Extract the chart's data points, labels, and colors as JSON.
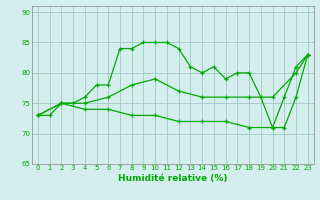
{
  "title": "",
  "xlabel": "Humidité relative (%)",
  "ylabel": "",
  "bg_color": "#d4eeee",
  "grid_color": "#a0c8c8",
  "line_color": "#00aa00",
  "ylim": [
    65,
    91
  ],
  "xlim": [
    -0.5,
    23.5
  ],
  "yticks": [
    65,
    70,
    75,
    80,
    85,
    90
  ],
  "xticks": [
    0,
    1,
    2,
    3,
    4,
    5,
    6,
    7,
    8,
    9,
    10,
    11,
    12,
    13,
    14,
    15,
    16,
    17,
    18,
    19,
    20,
    21,
    22,
    23
  ],
  "series": [
    {
      "x": [
        0,
        1,
        2,
        3,
        4,
        5,
        6,
        7,
        8,
        9,
        10,
        11,
        12,
        13,
        14,
        15,
        16,
        17,
        18,
        19,
        20,
        21,
        22,
        23
      ],
      "y": [
        73,
        73,
        75,
        75,
        76,
        78,
        78,
        84,
        84,
        85,
        85,
        85,
        84,
        81,
        80,
        81,
        79,
        80,
        80,
        76,
        71,
        76,
        81,
        83
      ]
    },
    {
      "x": [
        0,
        2,
        23
      ],
      "y": [
        73,
        75,
        83
      ]
    },
    {
      "x": [
        0,
        2,
        23
      ],
      "y": [
        73,
        75,
        83
      ]
    }
  ],
  "line1": {
    "x": [
      0,
      1,
      2,
      3,
      4,
      5,
      6,
      7,
      8,
      9,
      10,
      11,
      12,
      13,
      14,
      15,
      16,
      17,
      18,
      19,
      20,
      21,
      22,
      23
    ],
    "y": [
      73,
      73,
      75,
      75,
      76,
      78,
      78,
      84,
      84,
      85,
      85,
      85,
      84,
      81,
      80,
      81,
      79,
      80,
      80,
      76,
      71,
      76,
      81,
      83
    ]
  },
  "line2": {
    "x": [
      0,
      2,
      4,
      6,
      8,
      10,
      12,
      14,
      16,
      18,
      20,
      22,
      23
    ],
    "y": [
      73,
      75,
      75,
      76,
      78,
      79,
      77,
      76,
      76,
      76,
      76,
      80,
      83
    ]
  },
  "line3": {
    "x": [
      0,
      2,
      4,
      6,
      8,
      10,
      12,
      14,
      16,
      18,
      20,
      21,
      22,
      23
    ],
    "y": [
      73,
      75,
      74,
      74,
      73,
      73,
      72,
      72,
      72,
      71,
      71,
      71,
      76,
      83
    ]
  }
}
